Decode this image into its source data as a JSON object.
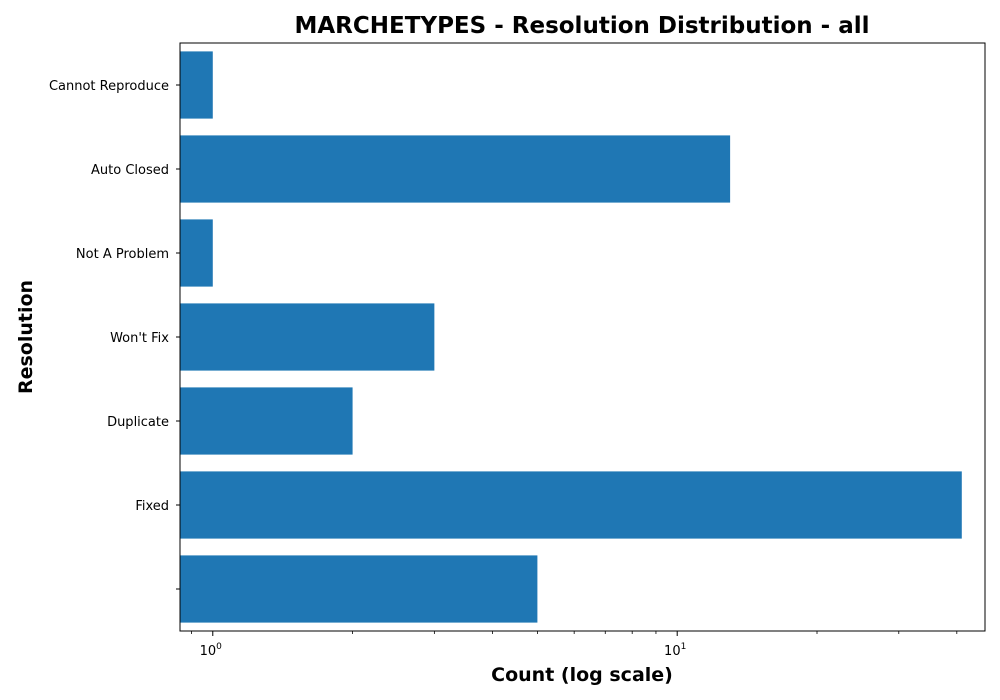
{
  "chart_data": {
    "type": "bar",
    "orientation": "horizontal",
    "title": "MARCHETYPES - Resolution Distribution - all",
    "xlabel": "Count (log scale)",
    "ylabel": "Resolution",
    "xscale": "log",
    "xlim": [
      0.85,
      46
    ],
    "xticks": [
      {
        "value": 1,
        "base": "10",
        "exp": "0"
      },
      {
        "value": 10,
        "base": "10",
        "exp": "1"
      }
    ],
    "categories": [
      "",
      "Fixed",
      "Duplicate",
      "Won't Fix",
      "Not A Problem",
      "Auto Closed",
      "Cannot Reproduce"
    ],
    "values": [
      5,
      41,
      2,
      3,
      1,
      13,
      1
    ],
    "bar_color": "#1f77b4",
    "grid": false,
    "legend": "none"
  }
}
